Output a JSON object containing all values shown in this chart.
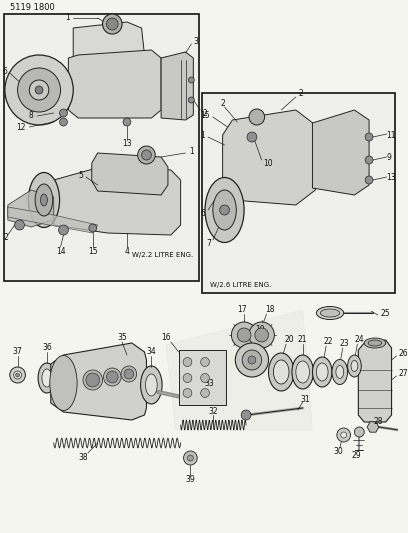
{
  "title": "5119 1800",
  "bg_color": "#f5f5f0",
  "fig_width": 4.08,
  "fig_height": 5.33,
  "dpi": 100,
  "border_color": "#111111",
  "text_color": "#111111",
  "diagram_color": "#222222",
  "light_gray": "#c8c8c8",
  "mid_gray": "#888888",
  "dark_gray": "#444444",
  "label_2_2": "W/2.2 LITRE ENG.",
  "label_2_6": "W/2.6 LITRE ENG."
}
